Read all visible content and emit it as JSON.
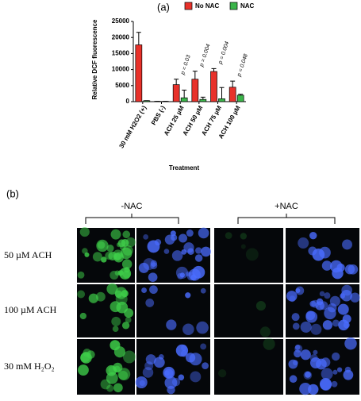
{
  "chart_data": {
    "type": "bar",
    "panel_label": "(a)",
    "y_label": "Relative DCF fluorescence",
    "x_label": "Treatment",
    "categories": [
      "30 mM H2O2 (+)",
      "PBS (-)",
      "ACH 25 µM",
      "ACH 50 µM",
      "ACH 75 µM",
      "ACH 100 µM"
    ],
    "series": [
      {
        "name": "No NAC",
        "color": "#e8312a",
        "values": [
          17700,
          100,
          5300,
          7000,
          9400,
          4500
        ],
        "errors": [
          3900,
          0,
          1700,
          2500,
          900,
          1900
        ]
      },
      {
        "name": "NAC",
        "color": "#3bb54a",
        "values": [
          300,
          100,
          1200,
          700,
          900,
          2000
        ],
        "errors": [
          0,
          0,
          2400,
          700,
          3500,
          300
        ]
      }
    ],
    "p_values": [
      null,
      null,
      "p = 0.03",
      "p = 0.004",
      "p = 0.004",
      "p = 0.048"
    ],
    "ylim": [
      0,
      25000
    ],
    "yticks": [
      0,
      5000,
      10000,
      15000,
      20000,
      25000
    ],
    "legend": "top-right"
  },
  "figure_b": {
    "panel_label": "(b)",
    "groups": [
      "-NAC",
      "+NAC"
    ],
    "rows": [
      "50 µM ACH",
      "100 µM ACH",
      "30 mM H₂O₂"
    ]
  }
}
